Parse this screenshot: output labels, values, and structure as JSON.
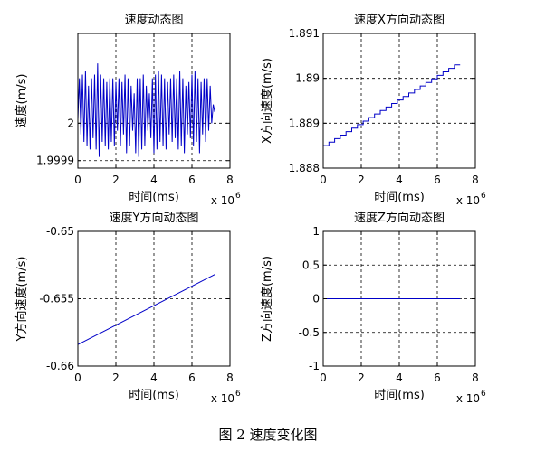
{
  "figure": {
    "caption": "图 2  速度变化图"
  },
  "colors": {
    "series": "#0000c8",
    "axes": "#000000",
    "grid": "#000000"
  },
  "chart_data": [
    {
      "type": "line",
      "title": "速度动态图",
      "xlabel": "时间(ms)",
      "ylabel": "速度(m/s)",
      "x_multiplier": "x 10",
      "x_multiplier_exp": "6",
      "xlim": [
        0,
        8
      ],
      "ylim": [
        1.99988,
        2.00024
      ],
      "xticks": [
        "0",
        "2",
        "4",
        "6",
        "8"
      ],
      "yticks": [
        {
          "value": 2.0,
          "label": "2"
        },
        {
          "value": 1.9999,
          "label": "1.9999"
        }
      ],
      "grid": true,
      "series": [
        {
          "x": [
            0,
            0.08,
            0.16,
            0.24,
            0.32,
            0.4,
            0.48,
            0.56,
            0.64,
            0.72,
            0.8,
            0.88,
            0.96,
            1.04,
            1.12,
            1.2,
            1.28,
            1.36,
            1.44,
            1.52,
            1.6,
            1.68,
            1.76,
            1.84,
            1.92,
            2.0,
            2.08,
            2.16,
            2.24,
            2.32,
            2.4,
            2.48,
            2.56,
            2.64,
            2.72,
            2.8,
            2.88,
            2.96,
            3.04,
            3.12,
            3.2,
            3.28,
            3.36,
            3.44,
            3.52,
            3.6,
            3.68,
            3.76,
            3.84,
            3.92,
            4.0,
            4.08,
            4.16,
            4.24,
            4.32,
            4.4,
            4.48,
            4.56,
            4.64,
            4.72,
            4.8,
            4.88,
            4.96,
            5.04,
            5.12,
            5.2,
            5.28,
            5.36,
            5.44,
            5.52,
            5.6,
            5.68,
            5.76,
            5.84,
            5.92,
            6.0,
            6.08,
            6.16,
            6.24,
            6.32,
            6.4,
            6.48,
            6.56,
            6.64,
            6.72,
            6.8,
            6.88,
            6.96,
            7.04,
            7.12,
            7.2
          ],
          "y": [
            2.00001,
            2.00012,
            1.99997,
            2.00013,
            1.99995,
            2.00014,
            1.99994,
            2.0001,
            1.99993,
            2.00012,
            1.99996,
            2.00013,
            1.99993,
            2.00016,
            1.99991,
            2.00013,
            1.99995,
            2.00012,
            1.99994,
            2.00011,
            1.99993,
            2.00012,
            1.99995,
            2.00012,
            1.99994,
            2.00011,
            1.99998,
            2.00012,
            1.99994,
            2.00011,
            1.99997,
            2.00013,
            1.99992,
            2.00012,
            1.99994,
            2.0001,
            1.99998,
            2.00008,
            1.99992,
            2.00012,
            1.99991,
            2.00012,
            1.99993,
            2.00013,
            1.99994,
            2.0001,
            1.99998,
            2.00008,
            1.99996,
            2.00012,
            1.99992,
            2.00013,
            1.99993,
            2.00014,
            1.99995,
            2.00013,
            1.99994,
            2.00012,
            1.99993,
            2.00011,
            1.99997,
            2.00012,
            1.99995,
            2.00013,
            1.99996,
            2.00012,
            1.99993,
            2.00014,
            1.99994,
            2.00012,
            1.99992,
            2.0001,
            1.99997,
            2.00011,
            1.99996,
            2.00013,
            1.99994,
            2.00014,
            1.99995,
            2.00012,
            1.99992,
            2.00011,
            1.99997,
            2.00012,
            1.99995,
            2.00012,
            1.99998,
            2.0001,
            2.0,
            2.00005,
            2.00003
          ]
        }
      ]
    },
    {
      "type": "line",
      "title": "速度X方向动态图",
      "xlabel": "时间(ms)",
      "ylabel": "X方向速度(m/s)",
      "x_multiplier": "x 10",
      "x_multiplier_exp": "6",
      "xlim": [
        0,
        8
      ],
      "ylim": [
        1.888,
        1.891
      ],
      "xticks": [
        "0",
        "2",
        "4",
        "6",
        "8"
      ],
      "yticks": [
        {
          "value": 1.891,
          "label": "1.891"
        },
        {
          "value": 1.89,
          "label": "1.89"
        },
        {
          "value": 1.889,
          "label": "1.889"
        },
        {
          "value": 1.888,
          "label": "1.888"
        }
      ],
      "grid": true,
      "series": [
        {
          "x": [
            0,
            7.2
          ],
          "y": [
            1.8885,
            1.8903
          ],
          "steps": 24
        }
      ]
    },
    {
      "type": "line",
      "title": "速度Y方向动态图",
      "xlabel": "时间(ms)",
      "ylabel": "Y方向速度(m/s)",
      "x_multiplier": "x 10",
      "x_multiplier_exp": "6",
      "xlim": [
        0,
        8
      ],
      "ylim": [
        -0.66,
        -0.65
      ],
      "xticks": [
        "0",
        "2",
        "4",
        "6",
        "8"
      ],
      "yticks": [
        {
          "value": -0.65,
          "label": "-0.65"
        },
        {
          "value": -0.655,
          "label": "-0.655"
        },
        {
          "value": -0.66,
          "label": "-0.66"
        }
      ],
      "grid": true,
      "series": [
        {
          "x": [
            0,
            7.2
          ],
          "y": [
            -0.6584,
            -0.6532
          ]
        }
      ]
    },
    {
      "type": "line",
      "title": "速度Z方向动态图",
      "xlabel": "时间(ms)",
      "ylabel": "Z方向速度(m/s)",
      "x_multiplier": "x 10",
      "x_multiplier_exp": "6",
      "xlim": [
        0,
        8
      ],
      "ylim": [
        -1,
        1
      ],
      "xticks": [
        "0",
        "2",
        "4",
        "6",
        "8"
      ],
      "yticks": [
        {
          "value": 1,
          "label": "1"
        },
        {
          "value": 0.5,
          "label": "0.5"
        },
        {
          "value": 0,
          "label": "0"
        },
        {
          "value": -0.5,
          "label": "-0.5"
        },
        {
          "value": -1,
          "label": "-1"
        }
      ],
      "grid": true,
      "series": [
        {
          "x": [
            0,
            7.2
          ],
          "y": [
            0,
            0
          ]
        }
      ]
    }
  ]
}
